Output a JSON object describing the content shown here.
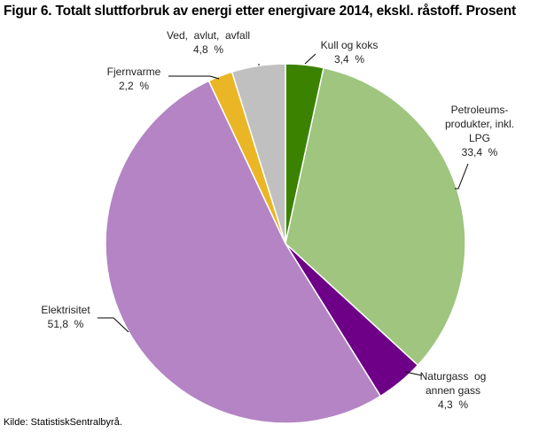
{
  "figure": {
    "title": "Figur 6. Totalt sluttforbruk av energi etter energivare 2014, ekskl. råstoff. Prosent",
    "source": "Kilde: StatistiskSentralbyrå."
  },
  "chart_data": {
    "type": "pie",
    "title": "Figur 6. Totalt sluttforbruk av energi etter energivare 2014, ekskl. råstoff. Prosent",
    "unit": "Prosent",
    "start": "top",
    "direction": "clockwise",
    "slices": [
      {
        "label_lines": [
          "Kull og koks"
        ],
        "value": 3.4,
        "value_label": "3,4  %",
        "color": "#3a8200"
      },
      {
        "label_lines": [
          "Petroleums-",
          "produkter, inkl.",
          "LPG"
        ],
        "value": 33.4,
        "value_label": "33,4  %",
        "color": "#9fc57f"
      },
      {
        "label_lines": [
          "Naturgass  og",
          "annen gass"
        ],
        "value": 4.3,
        "value_label": "4,3  %",
        "color": "#6d0087"
      },
      {
        "label_lines": [
          "Elektrisitet"
        ],
        "value": 51.8,
        "value_label": "51,8  %",
        "color": "#b484c4"
      },
      {
        "label_lines": [
          "Fjernvarme"
        ],
        "value": 2.2,
        "value_label": "2,2  %",
        "color": "#ebb625"
      },
      {
        "label_lines": [
          "Ved,  avlut,  avfall"
        ],
        "value": 4.8,
        "value_label": "4,8  %",
        "color": "#c0c0c0"
      }
    ]
  }
}
